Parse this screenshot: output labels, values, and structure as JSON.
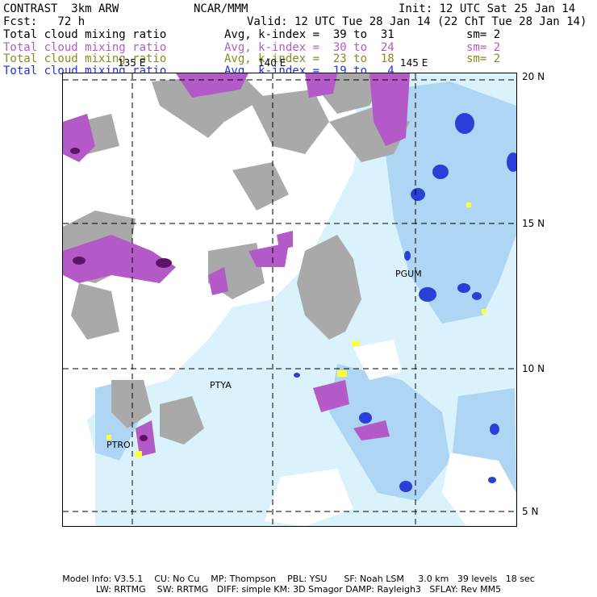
{
  "header": {
    "model_name": "CONTRAST  3km ARW",
    "center": "NCAR/MMM",
    "init": "Init: 12 UTC Sat 25 Jan 14",
    "forecast": "Fcst:   72 h",
    "valid": "Valid: 12 UTC Tue 28 Jan 14 (22 ChT Tue 28 Jan 14)"
  },
  "legend": [
    {
      "field": "Total cloud mixing ratio",
      "range": "Avg, k-index =  39 to  31",
      "smooth": "sm= 2",
      "color": "#000000"
    },
    {
      "field": "Total cloud mixing ratio",
      "range": "Avg, k-index =  30 to  24",
      "smooth": "sm= 2",
      "color": "#b45ac8"
    },
    {
      "field": "Total cloud mixing ratio",
      "range": "Avg, k-index =  23 to  18",
      "smooth": "sm= 2",
      "color": "#8a8a1e"
    },
    {
      "field": "Total cloud mixing ratio",
      "range": "Avg, k-index =  19 to   4",
      "smooth": "",
      "color": "#1f2fe0"
    }
  ],
  "map": {
    "lon_labels": [
      "135 E",
      "140 E",
      "145 E"
    ],
    "lat_labels": [
      "20 N",
      "15 N",
      "10 N",
      "5 N"
    ],
    "stations": [
      "PGUM",
      "PTYA",
      "PTRO"
    ]
  },
  "footer": {
    "line1": "Model Info: V3.5.1    CU: No Cu    MP: Thompson    PBL: YSU      SF: Noah LSM     3.0 km   39 levels   18 sec",
    "line2": "LW: RRTMG    SW: RRTMG   DIFF: simple KM: 3D Smagor DAMP: Rayleigh3   SFLAY: Rev MM5"
  },
  "colors": {
    "gray_cloud": "#a9a9a9",
    "purple_cloud": "#b45ac8",
    "dark_purple": "#5e1466",
    "light_blue": "#d9f2fb",
    "mid_blue": "#9ecbf0",
    "deep_blue": "#2a3fd8",
    "yellow": "#ffff33"
  }
}
